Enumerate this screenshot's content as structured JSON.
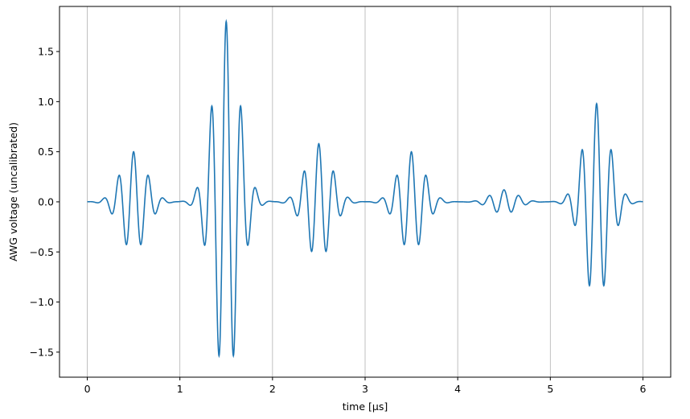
{
  "chart_data": {
    "type": "line",
    "title": "",
    "xlabel": "time [µs]",
    "ylabel": "AWG voltage (uncalibrated)",
    "xlim": [
      -0.3,
      6.3
    ],
    "ylim": [
      -1.75,
      1.95
    ],
    "xticks": [
      0,
      1,
      2,
      3,
      4,
      5,
      6
    ],
    "yticks": [
      -1.5,
      -1.0,
      -0.5,
      0.0,
      0.5,
      1.0,
      1.5
    ],
    "ytick_labels": [
      "−1.5",
      "−1.0",
      "−0.5",
      "0.0",
      "0.5",
      "1.0",
      "1.5"
    ],
    "grid": "vertical gridlines at x ticks",
    "line_color": "#1f77b4",
    "series": [
      {
        "pulses": [
          {
            "center": 0.5,
            "amplitude": 0.5
          },
          {
            "center": 1.5,
            "amplitude": 1.8
          },
          {
            "center": 2.5,
            "amplitude": 0.58
          },
          {
            "center": 3.5,
            "amplitude": 0.5
          },
          {
            "center": 4.5,
            "amplitude": 0.12
          },
          {
            "center": 5.5,
            "amplitude": 0.98
          }
        ],
        "carrier_period_us": 0.16,
        "envelope_sigma_us": 0.14,
        "x_range": [
          0,
          6
        ]
      }
    ]
  }
}
